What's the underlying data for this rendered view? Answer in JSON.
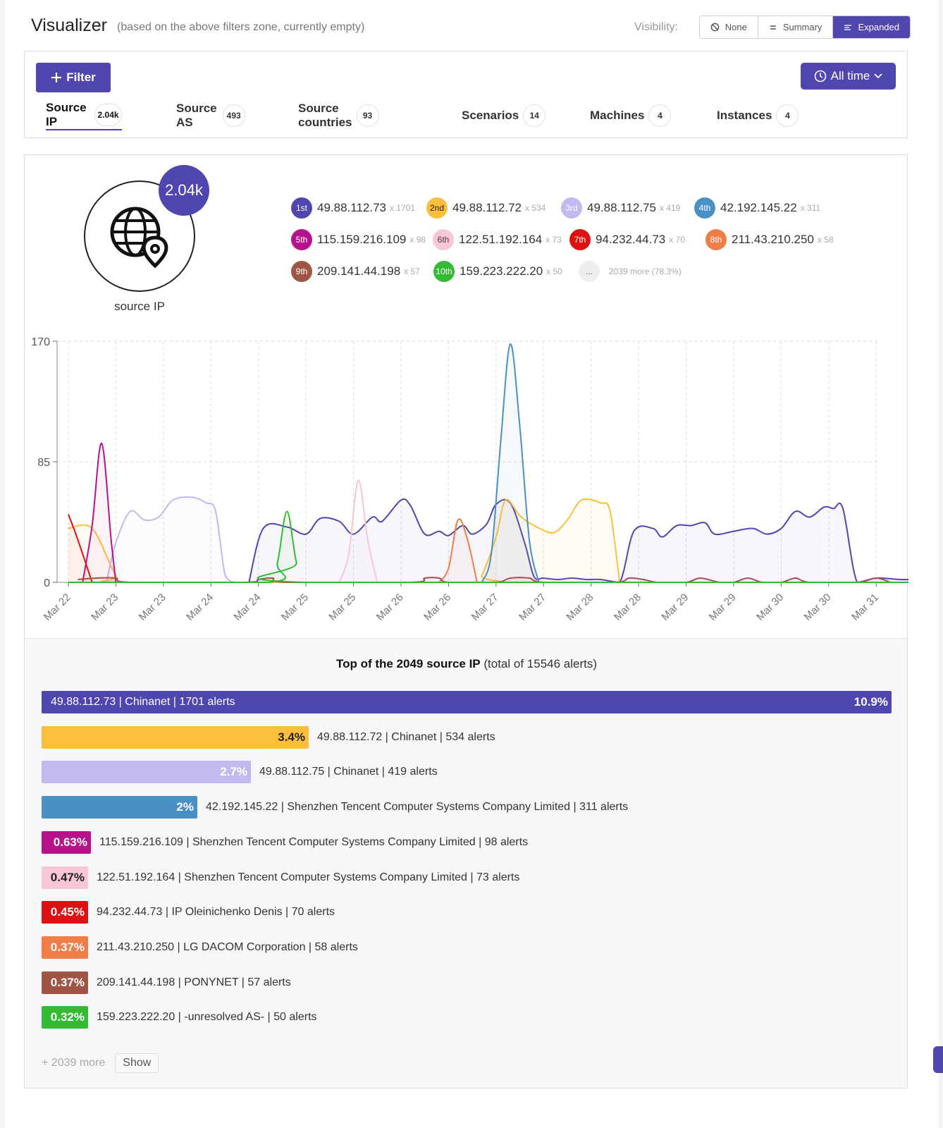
{
  "header": {
    "title": "Visualizer",
    "subtitle": "(based on the above filters zone, currently empty)",
    "visibility_label": "Visibility:",
    "visibility_options": [
      "None",
      "Summary",
      "Expanded"
    ],
    "visibility_selected": "Expanded"
  },
  "filters": {
    "filter_button": "Filter",
    "time_button": "All time",
    "tabs": [
      {
        "label": "Source IP",
        "count": "2.04k"
      },
      {
        "label": "Source AS",
        "count": "493"
      },
      {
        "label": "Source countries",
        "count": "93"
      },
      {
        "label": "Scenarios",
        "count": "14"
      },
      {
        "label": "Machines",
        "count": "4"
      },
      {
        "label": "Instances",
        "count": "4"
      }
    ]
  },
  "summary": {
    "badge": "2.04k",
    "icon_label": "source IP",
    "legend": [
      {
        "rank": "1st",
        "ip": "49.88.112.73",
        "count": "x 1701",
        "color": "#4f46b0"
      },
      {
        "rank": "2nd",
        "ip": "49.88.112.72",
        "count": "x 534",
        "color": "#fbbf3c"
      },
      {
        "rank": "3rd",
        "ip": "49.88.112.75",
        "count": "x 419",
        "color": "#c4b8f0"
      },
      {
        "rank": "4th",
        "ip": "42.192.145.22",
        "count": "x 311",
        "color": "#4a90c4"
      },
      {
        "rank": "5th",
        "ip": "115.159.216.109",
        "count": "x 98",
        "color": "#b5128c"
      },
      {
        "rank": "6th",
        "ip": "122.51.192.164",
        "count": "x 73",
        "color": "#f9c5d8"
      },
      {
        "rank": "7th",
        "ip": "94.232.44.73",
        "count": "x 70",
        "color": "#dd1111"
      },
      {
        "rank": "8th",
        "ip": "211.43.210.250",
        "count": "x 58",
        "color": "#ef7d48"
      },
      {
        "rank": "9th",
        "ip": "209.141.44.198",
        "count": "x 57",
        "color": "#9e5546"
      },
      {
        "rank": "10th",
        "ip": "159.223.222.20",
        "count": "x 50",
        "color": "#33bb33"
      }
    ],
    "more_chip": "...",
    "more_text": "2039 more (78.3%)"
  },
  "chart_data": {
    "type": "line",
    "x_tick_labels": [
      "Mar 22",
      "Mar 23",
      "Mar 23",
      "Mar 24",
      "Mar 24",
      "Mar 25",
      "Mar 25",
      "Mar 26",
      "Mar 26",
      "Mar 27",
      "Mar 27",
      "Mar 28",
      "Mar 28",
      "Mar 29",
      "Mar 29",
      "Mar 30",
      "Mar 30",
      "Mar 31"
    ],
    "y_ticks": [
      0,
      85,
      170
    ],
    "ylim": [
      0,
      170
    ],
    "grid": true,
    "series": [
      {
        "color": "#4f46b0",
        "values": [
          [
            3.8,
            0
          ],
          [
            4.1,
            38
          ],
          [
            4.6,
            39
          ],
          [
            5.0,
            34
          ],
          [
            5.3,
            45
          ],
          [
            5.7,
            43
          ],
          [
            6.0,
            34
          ],
          [
            6.4,
            46
          ],
          [
            6.6,
            43
          ],
          [
            7.0,
            58
          ],
          [
            7.2,
            54
          ],
          [
            7.5,
            34
          ],
          [
            7.8,
            36
          ],
          [
            8.0,
            33
          ],
          [
            8.3,
            40
          ],
          [
            8.5,
            34
          ],
          [
            8.8,
            41
          ],
          [
            9.0,
            55
          ],
          [
            9.3,
            56
          ],
          [
            9.6,
            28
          ],
          [
            9.8,
            4
          ],
          [
            10.0,
            3
          ],
          [
            10.3,
            2
          ],
          [
            10.6,
            3
          ],
          [
            10.9,
            2
          ],
          [
            11.2,
            2
          ],
          [
            11.6,
            0
          ],
          [
            11.9,
            36
          ],
          [
            12.3,
            38
          ],
          [
            12.5,
            32
          ],
          [
            12.8,
            40
          ],
          [
            13.1,
            40
          ],
          [
            13.4,
            42
          ],
          [
            13.6,
            34
          ],
          [
            14.0,
            36
          ],
          [
            14.4,
            38
          ],
          [
            14.7,
            34
          ],
          [
            15.0,
            38
          ],
          [
            15.3,
            50
          ],
          [
            15.6,
            46
          ],
          [
            15.9,
            53
          ],
          [
            16.1,
            52
          ],
          [
            16.3,
            52
          ],
          [
            16.6,
            0
          ],
          [
            17.0,
            3
          ],
          [
            17.5,
            2
          ],
          [
            18.0,
            2
          ]
        ]
      },
      {
        "color": "#fbbf3c",
        "values": [
          [
            0,
            38
          ],
          [
            0.5,
            38
          ],
          [
            1.0,
            5
          ],
          [
            1.3,
            0
          ],
          [
            8.5,
            0
          ],
          [
            8.7,
            5
          ],
          [
            9.0,
            32
          ],
          [
            9.2,
            58
          ],
          [
            9.5,
            47
          ],
          [
            9.8,
            40
          ],
          [
            10.2,
            35
          ],
          [
            10.5,
            44
          ],
          [
            10.8,
            58
          ],
          [
            11.2,
            56
          ],
          [
            11.4,
            50
          ],
          [
            11.6,
            0
          ]
        ]
      },
      {
        "color": "#c4b8f0",
        "values": [
          [
            0.8,
            0
          ],
          [
            1.0,
            28
          ],
          [
            1.3,
            50
          ],
          [
            1.6,
            44
          ],
          [
            1.9,
            46
          ],
          [
            2.2,
            58
          ],
          [
            2.6,
            60
          ],
          [
            2.9,
            56
          ],
          [
            3.1,
            50
          ],
          [
            3.3,
            5
          ],
          [
            3.5,
            0
          ]
        ]
      },
      {
        "color": "#4a90c4",
        "values": [
          [
            8.7,
            0
          ],
          [
            8.9,
            20
          ],
          [
            9.1,
            100
          ],
          [
            9.3,
            168
          ],
          [
            9.5,
            110
          ],
          [
            9.7,
            30
          ],
          [
            9.9,
            0
          ]
        ]
      },
      {
        "color": "#b5128c",
        "values": [
          [
            0.3,
            0
          ],
          [
            0.5,
            40
          ],
          [
            0.7,
            98
          ],
          [
            0.9,
            30
          ],
          [
            1.0,
            0
          ]
        ]
      },
      {
        "color": "#f9c5d8",
        "values": [
          [
            5.7,
            0
          ],
          [
            5.9,
            20
          ],
          [
            6.1,
            72
          ],
          [
            6.3,
            30
          ],
          [
            6.5,
            0
          ]
        ]
      },
      {
        "color": "#dd1111",
        "values": [
          [
            0,
            48
          ],
          [
            0.2,
            30
          ],
          [
            0.5,
            0
          ]
        ]
      },
      {
        "color": "#ef7d48",
        "values": [
          [
            7.8,
            0
          ],
          [
            8.0,
            10
          ],
          [
            8.2,
            44
          ],
          [
            8.4,
            30
          ],
          [
            8.6,
            0
          ]
        ]
      },
      {
        "color": "#9e5546",
        "values": [
          [
            0.2,
            2
          ],
          [
            0.6,
            3
          ],
          [
            1.0,
            3
          ],
          [
            1.3,
            0
          ],
          [
            3.7,
            0
          ],
          [
            4.0,
            2
          ],
          [
            4.3,
            3
          ],
          [
            4.6,
            0
          ],
          [
            7.2,
            0
          ],
          [
            7.5,
            3
          ],
          [
            7.8,
            3
          ],
          [
            8.0,
            0
          ],
          [
            9.0,
            0
          ],
          [
            9.3,
            3
          ],
          [
            9.7,
            3
          ],
          [
            10.0,
            0
          ],
          [
            11.5,
            0
          ],
          [
            11.8,
            3
          ],
          [
            12.1,
            2
          ],
          [
            12.4,
            0
          ],
          [
            13.0,
            0
          ],
          [
            13.3,
            3
          ],
          [
            13.7,
            0
          ],
          [
            14.0,
            0
          ],
          [
            14.3,
            3
          ],
          [
            14.6,
            0
          ],
          [
            15.0,
            0
          ],
          [
            15.3,
            3
          ],
          [
            15.6,
            0
          ],
          [
            16.6,
            0
          ],
          [
            17.0,
            3
          ],
          [
            17.3,
            0
          ]
        ]
      },
      {
        "color": "#33bb33",
        "values": [
          [
            0,
            0
          ],
          [
            4.2,
            0
          ],
          [
            4.4,
            14
          ],
          [
            4.6,
            50
          ],
          [
            4.8,
            14
          ],
          [
            5.0,
            0
          ],
          [
            18.0,
            0
          ]
        ]
      }
    ]
  },
  "top_list": {
    "title_bold": "Top of the 2049 source IP",
    "title_rest": "(total of 15546 alerts)",
    "rows": [
      {
        "pct": "10.9%",
        "text": "49.88.112.73 | Chinanet   | 1701 alerts",
        "color": "#4f46b0",
        "pct_color": "#ffffff",
        "fraction": 1.0
      },
      {
        "pct": "3.4%",
        "text": "49.88.112.72 | Chinanet   | 534 alerts",
        "color": "#fbbf3c",
        "pct_color": "#222222",
        "fraction": 0.314
      },
      {
        "pct": "2.7%",
        "text": "49.88.112.75 | Chinanet   | 419 alerts",
        "color": "#c4b8f0",
        "pct_color": "#ffffff",
        "fraction": 0.246
      },
      {
        "pct": "2%",
        "text": "42.192.145.22 | Shenzhen Tencent Computer Systems Company Limited   | 311 alerts",
        "color": "#4a90c4",
        "pct_color": "#ffffff",
        "fraction": 0.183
      },
      {
        "pct": "0.63%",
        "text": "115.159.216.109 | Shenzhen Tencent Computer Systems Company Limited   | 98 alerts",
        "color": "#b5128c",
        "pct_color": "#ffffff",
        "fraction": 0.058
      },
      {
        "pct": "0.47%",
        "text": "122.51.192.164 | Shenzhen Tencent Computer Systems Company Limited   | 73 alerts",
        "color": "#f9c5d8",
        "pct_color": "#222222",
        "fraction": 0.043
      },
      {
        "pct": "0.45%",
        "text": "94.232.44.73 | IP Oleinichenko Denis   | 70 alerts",
        "color": "#dd1111",
        "pct_color": "#ffffff",
        "fraction": 0.041
      },
      {
        "pct": "0.37%",
        "text": "211.43.210.250 | LG DACOM Corporation   | 58 alerts",
        "color": "#ef7d48",
        "pct_color": "#ffffff",
        "fraction": 0.034
      },
      {
        "pct": "0.37%",
        "text": "209.141.44.198 | PONYNET   | 57 alerts",
        "color": "#9e5546",
        "pct_color": "#ffffff",
        "fraction": 0.034
      },
      {
        "pct": "0.32%",
        "text": "159.223.222.20 | -unresolved AS-   | 50 alerts",
        "color": "#33bb33",
        "pct_color": "#ffffff",
        "fraction": 0.029
      }
    ],
    "more_text": "+ 2039 more",
    "show_button": "Show"
  }
}
